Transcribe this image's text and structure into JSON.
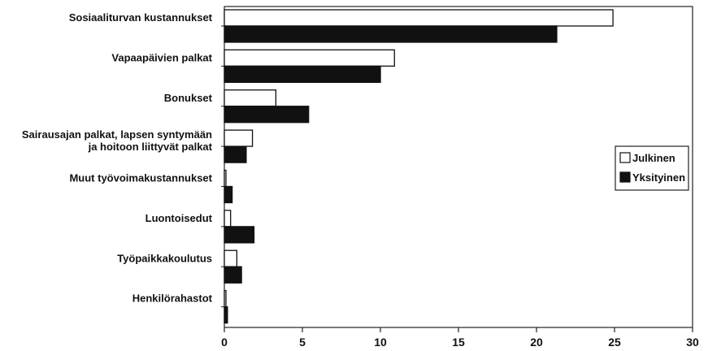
{
  "chart_data": {
    "type": "bar",
    "orientation": "horizontal",
    "title": "",
    "xlabel": "",
    "ylabel": "",
    "xlim": [
      0,
      30
    ],
    "xticks": [
      0,
      5,
      10,
      15,
      20,
      25,
      30
    ],
    "grid": false,
    "legend_placement": "right",
    "categories": [
      [
        "Sosiaaliturvan kustannukset"
      ],
      [
        "Vapaapäivien palkat"
      ],
      [
        "Bonukset"
      ],
      [
        "Sairausajan palkat, lapsen syntymään",
        "ja hoitoon liittyvät palkat"
      ],
      [
        "Muut työvoimakustannukset"
      ],
      [
        "Luontoisedut"
      ],
      [
        "Työpaikkakoulutus"
      ],
      [
        "Henkilörahastot"
      ]
    ],
    "series": [
      {
        "name": "Julkinen",
        "color": "#ffffff",
        "values": [
          24.9,
          10.9,
          3.3,
          1.8,
          0.1,
          0.4,
          0.8,
          0
        ]
      },
      {
        "name": "Yksityinen",
        "color": "#111111",
        "values": [
          21.3,
          10.0,
          5.4,
          1.4,
          0.5,
          1.9,
          1.1,
          0.2
        ]
      }
    ]
  }
}
